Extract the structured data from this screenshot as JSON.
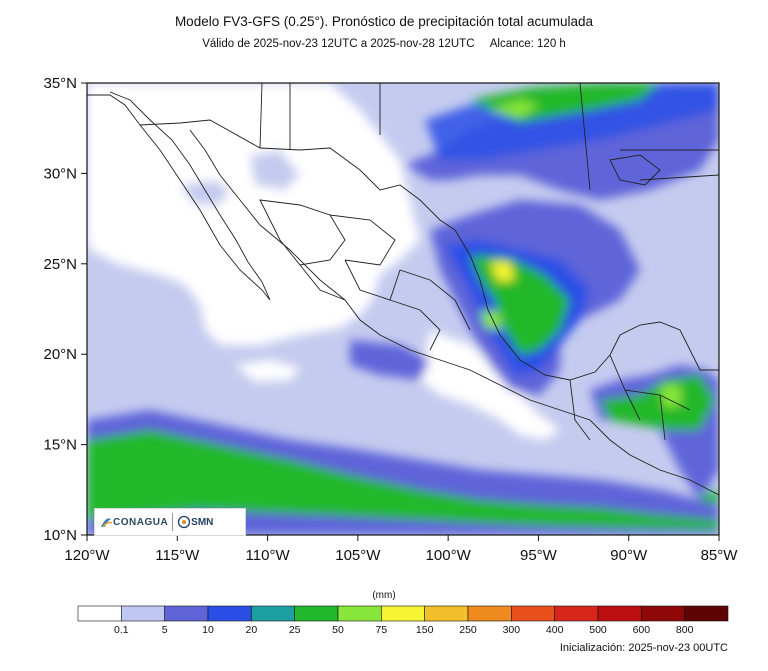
{
  "title": "Modelo FV3-GFS (0.25°). Pronóstico de precipitación total acumulada",
  "subtitle": {
    "validity": "Válido de 2025-nov-23 12UTC a 2025-nov-28 12UTC",
    "range": "Alcance: 120 h"
  },
  "map": {
    "lon_range": [
      -120,
      -85
    ],
    "lat_range": [
      10,
      35
    ],
    "lat_ticks": [
      "35°N",
      "30°N",
      "25°N",
      "20°N",
      "15°N",
      "10°N"
    ],
    "lon_ticks": [
      "120°W",
      "115°W",
      "110°W",
      "105°W",
      "100°W",
      "95°W",
      "90°W",
      "85°W"
    ],
    "ocean_base_color": "#c5cbef"
  },
  "colorbar": {
    "units": "(mm)",
    "colors": [
      "#ffffff",
      "#bfc7f2",
      "#5f65d9",
      "#2b4fe6",
      "#1fa0a0",
      "#22b82c",
      "#88e63a",
      "#f6f432",
      "#f2c02a",
      "#ef8a1e",
      "#e8501c",
      "#d9261a",
      "#bb0e0e",
      "#8e0808",
      "#5e0404"
    ],
    "labels": [
      "0.1",
      "5",
      "10",
      "20",
      "25",
      "50",
      "75",
      "150",
      "250",
      "300",
      "400",
      "500",
      "600",
      "800"
    ]
  },
  "logos": {
    "conagua_text": "CONAGUA",
    "smn_text": "SMN"
  },
  "initialization": "Inicialización: 2025-nov-23 00UTC"
}
